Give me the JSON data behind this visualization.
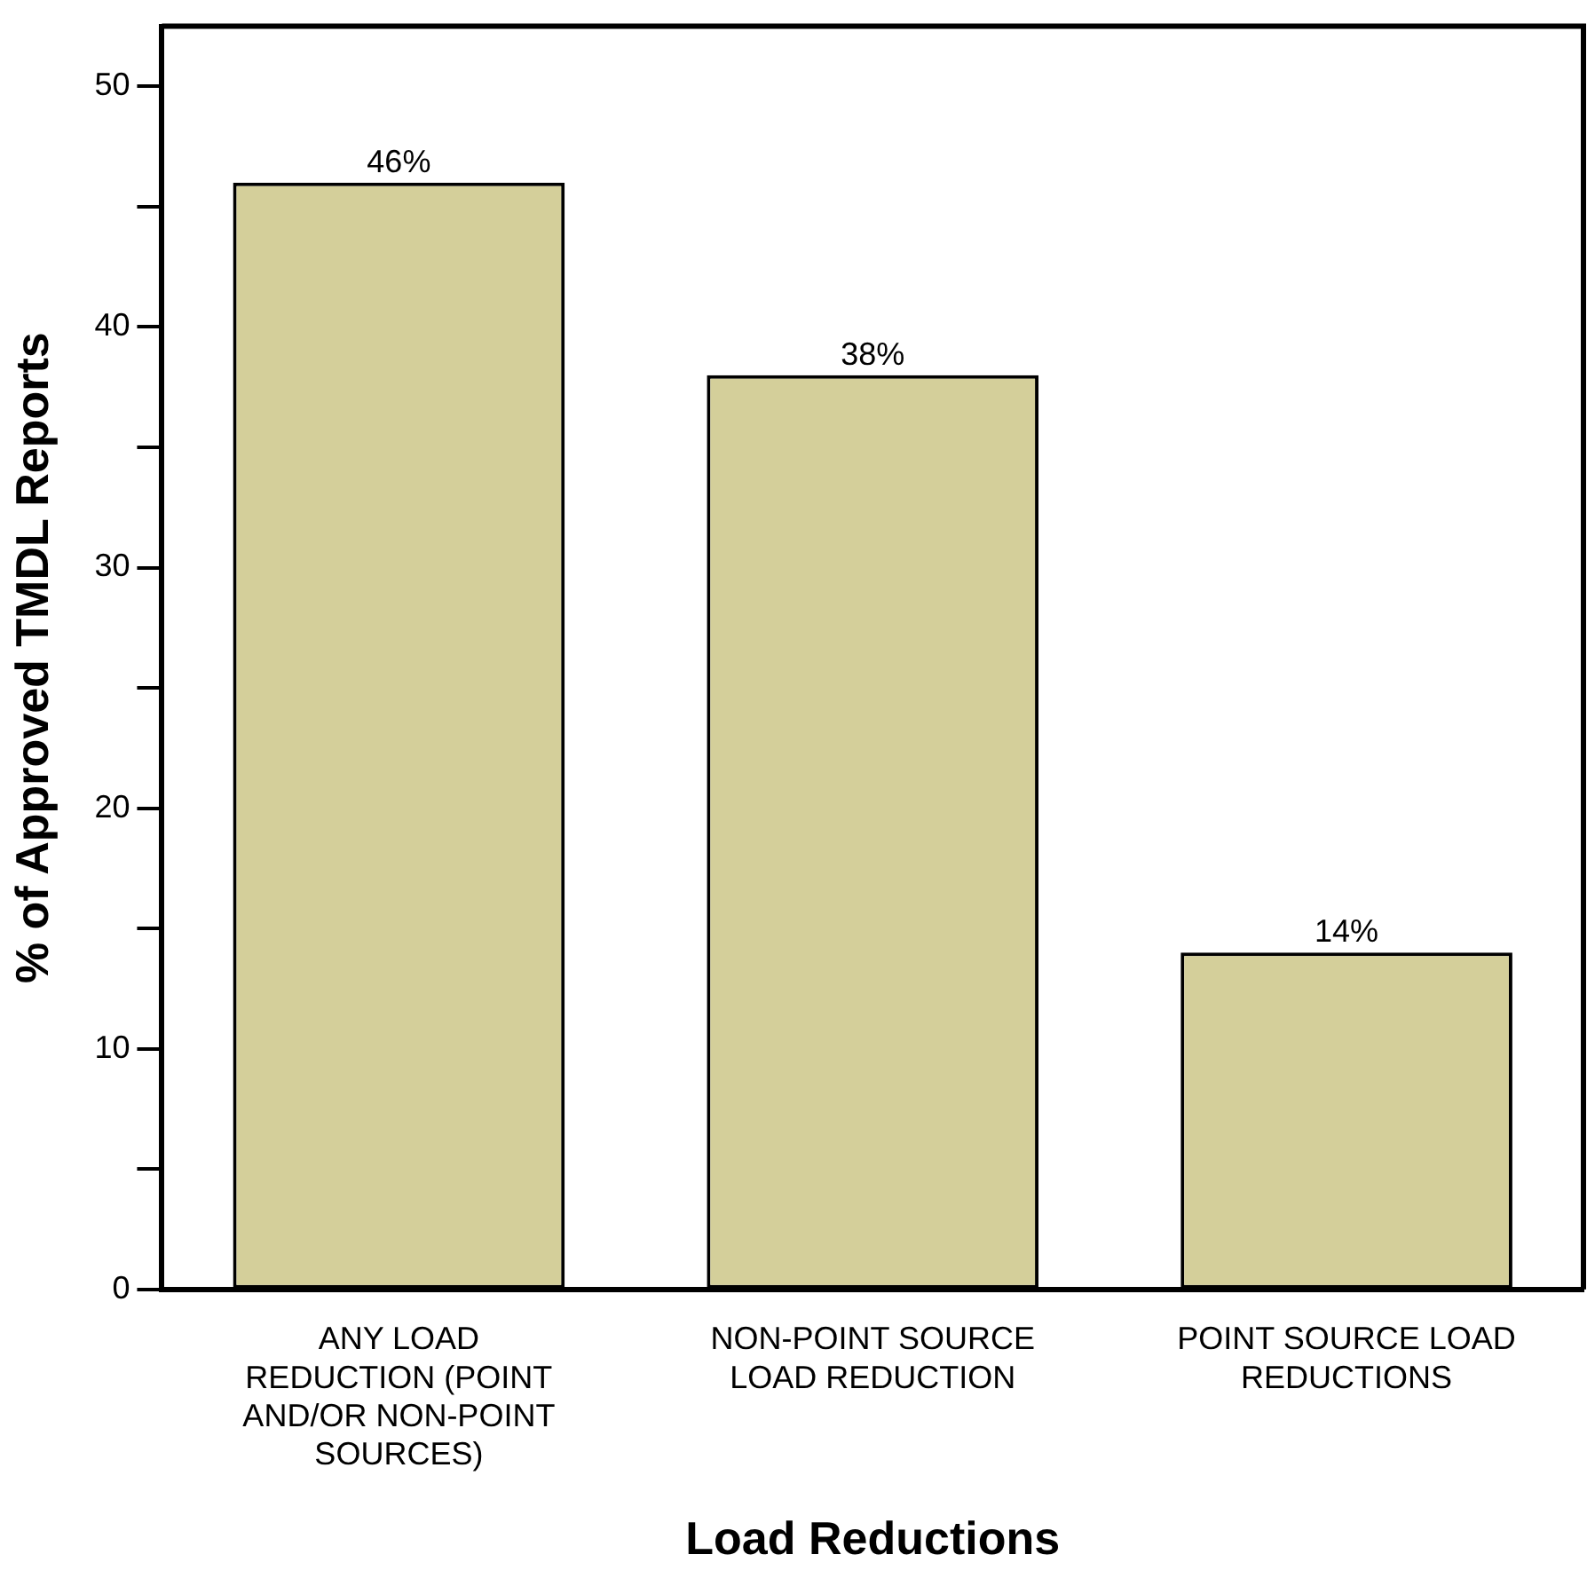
{
  "chart_data": {
    "type": "bar",
    "categories": [
      "ANY LOAD REDUCTION (POINT AND/OR NON-POINT SOURCES)",
      "NON-POINT SOURCE LOAD REDUCTION",
      "POINT SOURCE LOAD REDUCTIONS"
    ],
    "values": [
      46,
      38,
      14
    ],
    "value_labels": [
      "46%",
      "38%",
      "14%"
    ],
    "color": "#d4cf9a",
    "xlabel": "Load Reductions",
    "ylabel": "% of Approved TMDL Reports",
    "ylim": [
      0,
      52.5
    ],
    "yticks": [
      0,
      {
        "value": 5,
        "label": null
      },
      10,
      {
        "value": 15,
        "label": null
      },
      20,
      {
        "value": 25,
        "label": null
      },
      30,
      {
        "value": 35,
        "label": null
      },
      40,
      {
        "value": 45,
        "label": null
      },
      50
    ],
    "grid": false,
    "legend": false
  }
}
